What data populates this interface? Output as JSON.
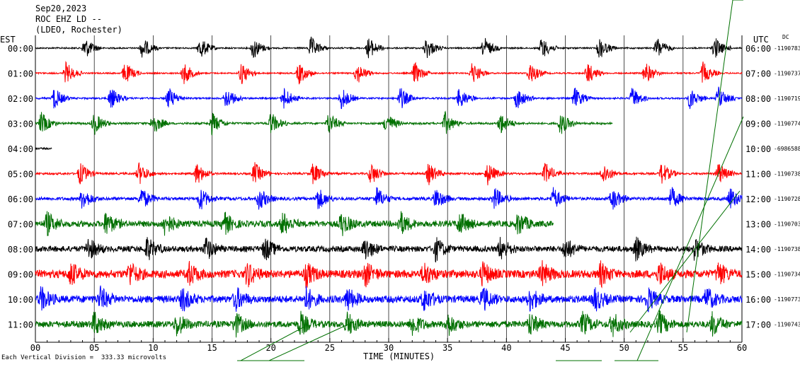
{
  "header": {
    "date": "Sep20,2023",
    "station": "ROC EHZ LD --",
    "network": "(LDEO, Rochester)",
    "left_tz": "EST",
    "right_tz": "UTC",
    "dc_label": "DC"
  },
  "footer": {
    "scale_note": "Each Vertical Division =  333.33 microvolts"
  },
  "chart_data": {
    "type": "line",
    "title": "ROC EHZ LD --",
    "xlabel": "TIME (MINUTES)",
    "ylabel": "",
    "xlim": [
      0,
      60
    ],
    "x_ticks": [
      "00",
      "05",
      "10",
      "15",
      "20",
      "25",
      "30",
      "35",
      "40",
      "45",
      "50",
      "55",
      "60"
    ],
    "x_tick_values": [
      0,
      5,
      10,
      15,
      20,
      25,
      30,
      35,
      40,
      45,
      50,
      55,
      60
    ],
    "grid": true,
    "traces": [
      {
        "left": "00:00",
        "right": "06:00",
        "dc": "-1190783",
        "color": "#000000",
        "end_min": 60,
        "noise": 1.0,
        "bursts": [
          4.2,
          9.1,
          14,
          18.5,
          23.4,
          28.3,
          33.2,
          38.1,
          43,
          47.9,
          52.8,
          57.7
        ]
      },
      {
        "left": "01:00",
        "right": "07:00",
        "dc": "-1190737",
        "color": "#ff0000",
        "end_min": 60,
        "noise": 1.0,
        "bursts": [
          2.6,
          7.6,
          12.6,
          17.5,
          22.4,
          27.3,
          32.2,
          37.1,
          42,
          46.9,
          51.8,
          56.7
        ]
      },
      {
        "left": "02:00",
        "right": "08:00",
        "dc": "-1190719",
        "color": "#0000ff",
        "end_min": 60,
        "noise": 1.2,
        "bursts": [
          1.6,
          6.4,
          11.3,
          16.2,
          21.1,
          26,
          31,
          36,
          40.9,
          45.8,
          50.7,
          55.6,
          58
        ]
      },
      {
        "left": "03:00",
        "right": "09:00",
        "dc": "-1190774",
        "color": "#007000",
        "end_min": 49,
        "noise": 1.4,
        "bursts": [
          0.5,
          5,
          10,
          15,
          20,
          24.9,
          29.8,
          34.8,
          39.5,
          44.6
        ]
      },
      {
        "left": "04:00",
        "right": "10:00",
        "dc": "-6986588",
        "color": "#000000",
        "end_min": 1.4,
        "noise": 1.2,
        "bursts": []
      },
      {
        "left": "05:00",
        "right": "11:00",
        "dc": "-1190738",
        "color": "#ff0000",
        "end_min": 60,
        "noise": 1.4,
        "bursts": [
          3.8,
          8.8,
          13.7,
          18.6,
          23.6,
          28.5,
          33.4,
          38.4,
          43.3,
          48.2,
          53.2,
          58
        ]
      },
      {
        "left": "06:00",
        "right": "12:00",
        "dc": "-1190728",
        "color": "#0000ff",
        "end_min": 60,
        "noise": 2.2,
        "bursts": [
          4,
          9,
          14,
          19,
          24,
          29,
          34,
          39,
          44,
          49,
          54,
          59
        ]
      },
      {
        "left": "07:00",
        "right": "13:00",
        "dc": "-1190703",
        "color": "#007000",
        "end_min": 44,
        "noise": 4.2,
        "bursts": [
          1,
          6,
          11,
          16,
          21,
          26,
          31,
          36,
          41
        ]
      },
      {
        "left": "08:00",
        "right": "14:00",
        "dc": "-1190738",
        "color": "#000000",
        "end_min": 60,
        "noise": 4.0,
        "bursts": [
          4.5,
          9.5,
          14.5,
          19.5,
          28,
          34,
          39.5,
          45,
          51,
          56
        ]
      },
      {
        "left": "09:00",
        "right": "15:00",
        "dc": "-1190734",
        "color": "#ff0000",
        "end_min": 60,
        "noise": 5.5,
        "bursts": [
          3,
          8,
          13,
          18,
          23,
          28,
          33,
          38,
          43,
          48,
          53,
          58
        ]
      },
      {
        "left": "10:00",
        "right": "16:00",
        "dc": "-1190773",
        "color": "#0000ff",
        "end_min": 60,
        "noise": 5.0,
        "bursts": [
          0.5,
          5.5,
          12.5,
          17,
          23,
          26.5,
          33,
          38,
          42,
          47.5,
          52,
          57
        ]
      },
      {
        "left": "11:00",
        "right": "17:00",
        "dc": "-1190743",
        "color": "#007000",
        "end_min": 60,
        "noise": 4.5,
        "bursts": [
          5,
          12,
          17,
          22.5,
          26.5,
          32,
          35,
          42,
          46.5,
          49,
          53,
          57.5
        ]
      }
    ]
  }
}
